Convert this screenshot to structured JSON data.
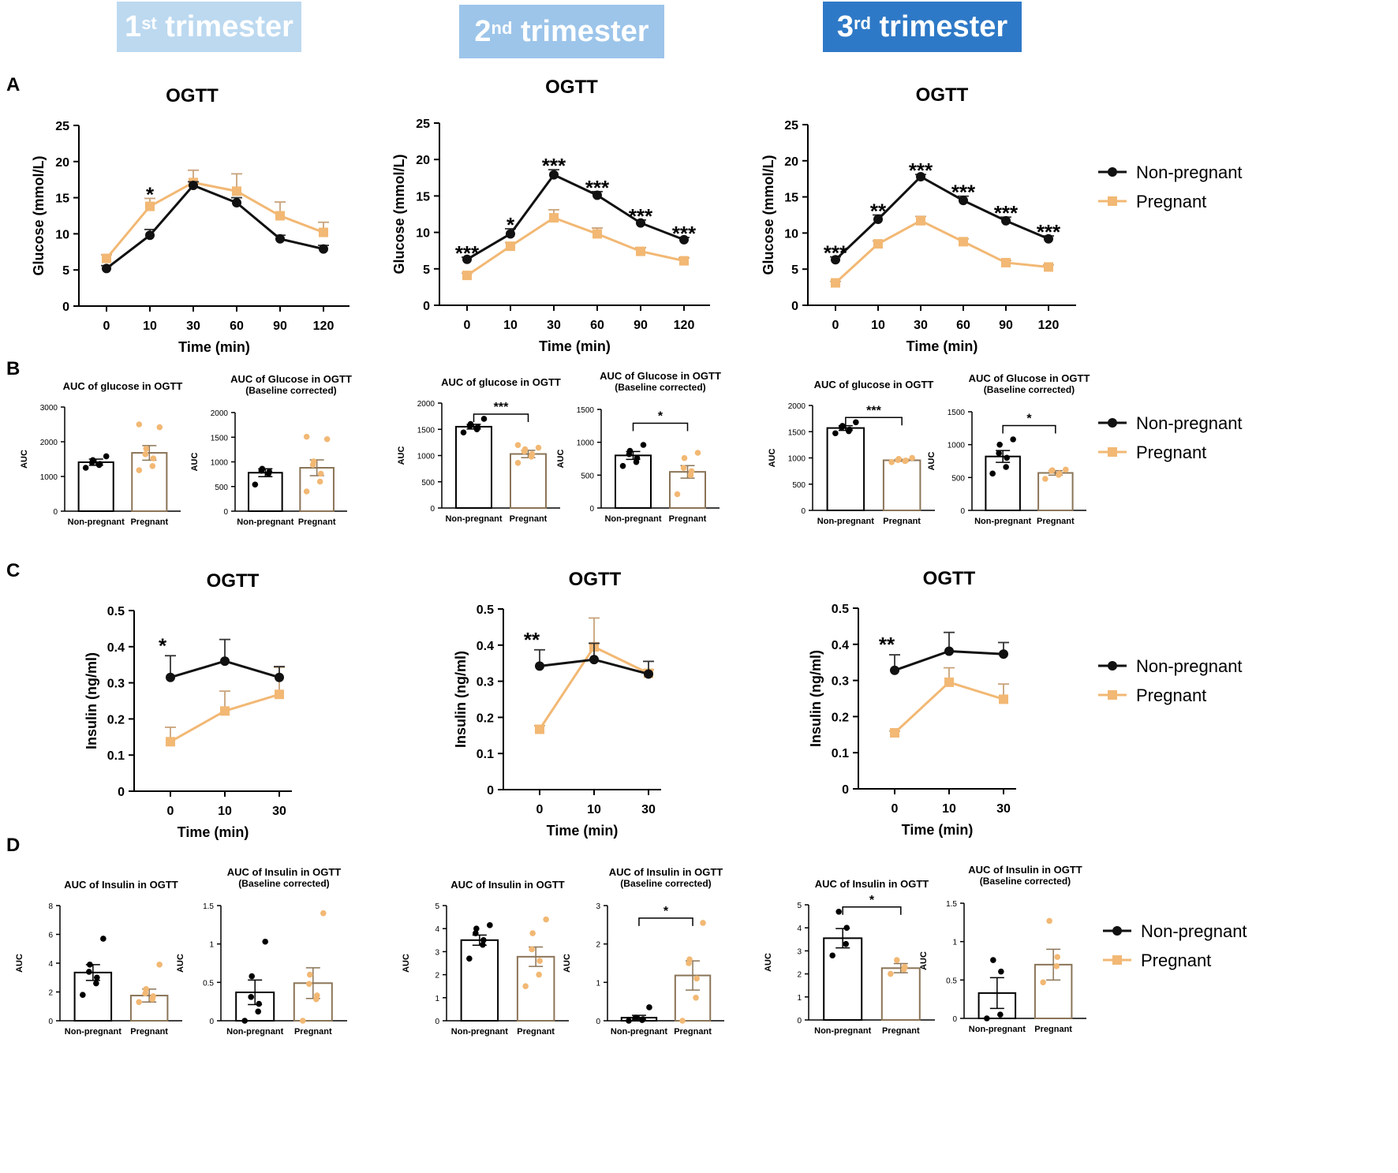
{
  "colors": {
    "black": "#111111",
    "orange": "#f2b874",
    "banner1": "#bcd9f0",
    "banner2": "#9dc5ea",
    "banner3": "#2e79c7"
  },
  "banners": [
    {
      "ordinal": "1",
      "suffix": "st",
      "text": " trimester"
    },
    {
      "ordinal": "2",
      "suffix": "nd",
      "text": " trimester"
    },
    {
      "ordinal": "3",
      "suffix": "rd",
      "text": " trimester"
    }
  ],
  "panel_labels": [
    "A",
    "B",
    "C",
    "D"
  ],
  "legend": {
    "nonpregnant": "Non-pregnant",
    "pregnant": "Pregnant"
  },
  "chart_data": [
    {
      "id": "A1",
      "type": "line",
      "title": "OGTT",
      "xlabel": "Time (min)",
      "ylabel": "Glucose (mmol/L)",
      "categories": [
        "0",
        "10",
        "30",
        "60",
        "90",
        "120"
      ],
      "ylim": [
        0,
        25
      ],
      "yticks": [
        0,
        5,
        10,
        15,
        20,
        25
      ],
      "series": [
        {
          "name": "Non-pregnant",
          "values": [
            5.2,
            9.8,
            16.7,
            14.3,
            9.3,
            7.9
          ],
          "err": [
            0.4,
            0.8,
            0.5,
            0.7,
            0.5,
            0.5
          ]
        },
        {
          "name": "Pregnant",
          "values": [
            6.6,
            13.8,
            17.1,
            15.9,
            12.5,
            10.2
          ],
          "err": [
            0.5,
            1.1,
            1.7,
            2.4,
            1.9,
            1.4
          ]
        }
      ],
      "stars": [
        {
          "i": 1,
          "text": "*"
        }
      ]
    },
    {
      "id": "A2",
      "type": "line",
      "title": "OGTT",
      "xlabel": "Time (min)",
      "ylabel": "Glucose (mmol/L)",
      "categories": [
        "0",
        "10",
        "30",
        "60",
        "90",
        "120"
      ],
      "ylim": [
        0,
        25
      ],
      "yticks": [
        0,
        5,
        10,
        15,
        20,
        25
      ],
      "series": [
        {
          "name": "Non-pregnant",
          "values": [
            6.3,
            9.8,
            17.9,
            15.1,
            11.3,
            9.0
          ],
          "err": [
            0.3,
            0.7,
            0.7,
            0.5,
            0.4,
            0.3
          ]
        },
        {
          "name": "Pregnant",
          "values": [
            4.1,
            8.1,
            12.0,
            9.8,
            7.4,
            6.1
          ],
          "err": [
            0.3,
            0.5,
            1.1,
            0.8,
            0.5,
            0.4
          ]
        }
      ],
      "stars": [
        {
          "i": 0,
          "text": "***"
        },
        {
          "i": 1,
          "text": "*"
        },
        {
          "i": 2,
          "text": "***"
        },
        {
          "i": 3,
          "text": "***"
        },
        {
          "i": 4,
          "text": "***"
        },
        {
          "i": 5,
          "text": "***"
        }
      ]
    },
    {
      "id": "A3",
      "type": "line",
      "title": "OGTT",
      "xlabel": "Time (min)",
      "ylabel": "Glucose (mmol/L)",
      "categories": [
        "0",
        "10",
        "30",
        "60",
        "90",
        "120"
      ],
      "ylim": [
        0,
        25
      ],
      "yticks": [
        0,
        5,
        10,
        15,
        20,
        25
      ],
      "series": [
        {
          "name": "Non-pregnant",
          "values": [
            6.3,
            11.9,
            17.8,
            14.5,
            11.7,
            9.2
          ],
          "err": [
            0.4,
            0.6,
            0.3,
            0.6,
            0.5,
            0.4
          ]
        },
        {
          "name": "Pregnant",
          "values": [
            3.1,
            8.5,
            11.7,
            8.8,
            5.9,
            5.3
          ],
          "err": [
            0.2,
            0.4,
            0.6,
            0.4,
            0.3,
            0.3
          ]
        }
      ],
      "stars": [
        {
          "i": 0,
          "text": "***"
        },
        {
          "i": 1,
          "text": "**"
        },
        {
          "i": 2,
          "text": "***"
        },
        {
          "i": 3,
          "text": "***"
        },
        {
          "i": 4,
          "text": "***"
        },
        {
          "i": 5,
          "text": "***"
        }
      ]
    },
    {
      "id": "B1a",
      "type": "bar",
      "title": "AUC of glucose in OGTT",
      "ylabel": "AUC",
      "categories": [
        "Non-pregnant",
        "Pregnant"
      ],
      "ylim": [
        0,
        3000
      ],
      "yticks": [
        0,
        1000,
        2000,
        3000
      ],
      "values": [
        1410,
        1680
      ],
      "err": [
        90,
        210
      ],
      "points": [
        [
          1250,
          1330,
          1360,
          1400,
          1470,
          1580
        ],
        [
          1180,
          1300,
          1520,
          1640,
          1800,
          2420,
          2500
        ]
      ]
    },
    {
      "id": "B1b",
      "type": "bar",
      "title": "AUC of Glucose in OGTT",
      "subtitle": "(Baseline corrected)",
      "ylabel": "AUC",
      "categories": [
        "Non-pregnant",
        "Pregnant"
      ],
      "ylim": [
        0,
        2000
      ],
      "yticks": [
        0,
        500,
        1000,
        1500,
        2000
      ],
      "values": [
        780,
        880
      ],
      "err": [
        80,
        160
      ],
      "points": [
        [
          540,
          760,
          800,
          820,
          860
        ],
        [
          400,
          600,
          760,
          940,
          1010,
          1460,
          1510
        ]
      ]
    },
    {
      "id": "B2a",
      "type": "bar",
      "title": "AUC of glucose in OGTT",
      "ylabel": "AUC",
      "categories": [
        "Non-pregnant",
        "Pregnant"
      ],
      "ylim": [
        0,
        2000
      ],
      "yticks": [
        0,
        500,
        1000,
        1500,
        2000
      ],
      "values": [
        1550,
        1030
      ],
      "err": [
        45,
        70
      ],
      "points": [
        [
          1440,
          1500,
          1540,
          1560,
          1600,
          1700
        ],
        [
          860,
          980,
          1030,
          1080,
          1120,
          1150,
          1200
        ]
      ],
      "sig": "***"
    },
    {
      "id": "B2b",
      "type": "bar",
      "title": "AUC of Glucose in OGTT",
      "subtitle": "(Baseline corrected)",
      "ylabel": "AUC",
      "categories": [
        "Non-pregnant",
        "Pregnant"
      ],
      "ylim": [
        0,
        1500
      ],
      "yticks": [
        0,
        500,
        1000,
        1500
      ],
      "values": [
        800,
        550
      ],
      "err": [
        60,
        95
      ],
      "points": [
        [
          640,
          700,
          760,
          820,
          870,
          960
        ],
        [
          210,
          500,
          560,
          610,
          760,
          840
        ]
      ],
      "sig": "*"
    },
    {
      "id": "B3a",
      "type": "bar",
      "title": "AUC of glucose in OGTT",
      "ylabel": "AUC",
      "categories": [
        "Non-pregnant",
        "Pregnant"
      ],
      "ylim": [
        0,
        2000
      ],
      "yticks": [
        0,
        500,
        1000,
        1500,
        2000
      ],
      "values": [
        1570,
        955
      ],
      "err": [
        45,
        18
      ],
      "points": [
        [
          1470,
          1510,
          1540,
          1580,
          1610,
          1680
        ],
        [
          920,
          940,
          950,
          960,
          980,
          1000
        ]
      ],
      "sig": "***"
    },
    {
      "id": "B3b",
      "type": "bar",
      "title": "AUC of Glucose in OGTT",
      "subtitle": "(Baseline corrected)",
      "ylabel": "AUC",
      "categories": [
        "Non-pregnant",
        "Pregnant"
      ],
      "ylim": [
        0,
        1500
      ],
      "yticks": [
        0,
        500,
        1000,
        1500
      ],
      "values": [
        820,
        570
      ],
      "err": [
        90,
        35
      ],
      "points": [
        [
          560,
          660,
          800,
          870,
          1000,
          1080
        ],
        [
          480,
          540,
          560,
          600,
          610,
          620
        ]
      ],
      "sig": "*"
    },
    {
      "id": "C1",
      "type": "line",
      "title": "OGTT",
      "xlabel": "Time (min)",
      "ylabel": "Insulin (ng/ml)",
      "categories": [
        "0",
        "10",
        "30"
      ],
      "ylim": [
        0,
        0.5
      ],
      "yticks": [
        0.0,
        0.1,
        0.2,
        0.3,
        0.4,
        0.5
      ],
      "series": [
        {
          "name": "Non-pregnant",
          "values": [
            0.315,
            0.36,
            0.315
          ],
          "err": [
            0.06,
            0.06,
            0.03
          ]
        },
        {
          "name": "Pregnant",
          "values": [
            0.137,
            0.222,
            0.268
          ],
          "err": [
            0.04,
            0.055,
            0.075
          ]
        }
      ],
      "stars": [
        {
          "i": 0,
          "text": "*"
        }
      ]
    },
    {
      "id": "C2",
      "type": "line",
      "title": "OGTT",
      "xlabel": "Time (min)",
      "ylabel": "Insulin (ng/ml)",
      "categories": [
        "0",
        "10",
        "30"
      ],
      "ylim": [
        0,
        0.5
      ],
      "yticks": [
        0.0,
        0.1,
        0.2,
        0.3,
        0.4,
        0.5
      ],
      "series": [
        {
          "name": "Non-pregnant",
          "values": [
            0.342,
            0.36,
            0.32
          ],
          "err": [
            0.045,
            0.045,
            0.035
          ]
        },
        {
          "name": "Pregnant",
          "values": [
            0.167,
            0.395,
            0.322
          ],
          "err": [
            0.01,
            0.08,
            0.01
          ]
        }
      ],
      "stars": [
        {
          "i": 0,
          "text": "**"
        }
      ]
    },
    {
      "id": "C3",
      "type": "line",
      "title": "OGTT",
      "xlabel": "Time (min)",
      "ylabel": "Insulin (ng/ml)",
      "categories": [
        "0",
        "10",
        "30"
      ],
      "ylim": [
        0,
        0.5
      ],
      "yticks": [
        0.0,
        0.1,
        0.2,
        0.3,
        0.4,
        0.5
      ],
      "series": [
        {
          "name": "Non-pregnant",
          "values": [
            0.328,
            0.381,
            0.373
          ],
          "err": [
            0.043,
            0.052,
            0.032
          ]
        },
        {
          "name": "Pregnant",
          "values": [
            0.155,
            0.295,
            0.248
          ],
          "err": [
            0.005,
            0.04,
            0.042
          ]
        }
      ],
      "stars": [
        {
          "i": 0,
          "text": "**"
        }
      ]
    },
    {
      "id": "D1a",
      "type": "bar",
      "title": "AUC of Insulin in OGTT",
      "ylabel": "AUC",
      "categories": [
        "Non-pregnant",
        "Pregnant"
      ],
      "ylim": [
        0,
        8
      ],
      "yticks": [
        0,
        2,
        4,
        6,
        8
      ],
      "values": [
        3.35,
        1.75
      ],
      "err": [
        0.55,
        0.45
      ],
      "points": [
        [
          1.8,
          2.6,
          3.0,
          3.4,
          3.9,
          5.7
        ],
        [
          1.3,
          1.5,
          1.7,
          1.9,
          2.2,
          3.9
        ]
      ]
    },
    {
      "id": "D1b",
      "type": "bar",
      "title": "AUC of Insulin in OGTT",
      "subtitle": "(Baseline corrected)",
      "ylabel": "AUC",
      "categories": [
        "Non-pregnant",
        "Pregnant"
      ],
      "ylim": [
        0,
        1.5
      ],
      "yticks": [
        0.0,
        0.5,
        1.0,
        1.5
      ],
      "values": [
        0.37,
        0.49
      ],
      "err": [
        0.16,
        0.2
      ],
      "points": [
        [
          0.0,
          0.12,
          0.22,
          0.31,
          0.58,
          1.03
        ],
        [
          0.0,
          0.28,
          0.33,
          0.48,
          0.6,
          1.4
        ]
      ]
    },
    {
      "id": "D2a",
      "type": "bar",
      "title": "AUC of Insulin in OGTT",
      "ylabel": "AUC",
      "categories": [
        "Non-pregnant",
        "Pregnant"
      ],
      "ylim": [
        0,
        5
      ],
      "yticks": [
        0,
        1,
        2,
        3,
        4,
        5
      ],
      "values": [
        3.5,
        2.78
      ],
      "err": [
        0.22,
        0.42
      ],
      "points": [
        [
          2.7,
          3.3,
          3.5,
          3.8,
          4.0,
          4.15
        ],
        [
          1.5,
          2.0,
          2.6,
          3.1,
          3.8,
          4.4
        ]
      ]
    },
    {
      "id": "D2b",
      "type": "bar",
      "title": "AUC of Insulin in OGTT",
      "subtitle": "(Baseline corrected)",
      "ylabel": "AUC",
      "categories": [
        "Non-pregnant",
        "Pregnant"
      ],
      "ylim": [
        0,
        3
      ],
      "yticks": [
        0,
        1,
        2,
        3
      ],
      "values": [
        0.08,
        1.18
      ],
      "err": [
        0.06,
        0.38
      ],
      "points": [
        [
          0.0,
          0.02,
          0.04,
          0.06,
          0.08,
          0.35
        ],
        [
          0.0,
          0.6,
          1.1,
          1.5,
          1.6,
          2.55
        ]
      ],
      "sig": "*"
    },
    {
      "id": "D3a",
      "type": "bar",
      "title": "AUC of Insulin in OGTT",
      "ylabel": "AUC",
      "categories": [
        "Non-pregnant",
        "Pregnant"
      ],
      "ylim": [
        0,
        5
      ],
      "yticks": [
        0,
        1,
        2,
        3,
        4,
        5
      ],
      "values": [
        3.55,
        2.25
      ],
      "err": [
        0.42,
        0.2
      ],
      "points": [
        [
          2.8,
          3.3,
          4.0,
          4.7
        ],
        [
          2.0,
          2.2,
          2.3,
          2.6
        ]
      ],
      "sig": "*"
    },
    {
      "id": "D3b",
      "type": "bar",
      "title": "AUC of Insulin in OGTT",
      "subtitle": "(Baseline corrected)",
      "ylabel": "AUC",
      "categories": [
        "Non-pregnant",
        "Pregnant"
      ],
      "ylim": [
        0,
        1.5
      ],
      "yticks": [
        0.0,
        0.5,
        1.0,
        1.5
      ],
      "values": [
        0.33,
        0.7
      ],
      "err": [
        0.2,
        0.2
      ],
      "points": [
        [
          0.0,
          0.05,
          0.61,
          0.76
        ],
        [
          0.47,
          0.68,
          0.8,
          1.27
        ]
      ]
    }
  ]
}
